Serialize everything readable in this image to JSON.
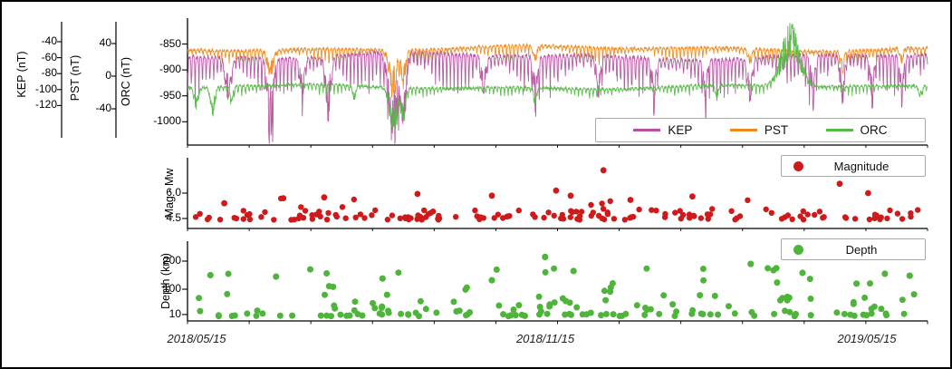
{
  "x_axis": {
    "labels": [
      "2018/05/15",
      "2018/11/15",
      "2019/05/15"
    ]
  },
  "chart_data": [
    {
      "type": "line",
      "panel": "magnetometers",
      "x_tick_labels": [
        "2018/05/15",
        "2018/11/15",
        "2019/05/15"
      ],
      "y_axes": [
        {
          "station": "KEP",
          "label": "KEP (nT)",
          "tick_labels": [
            "-40",
            "-60",
            "-80",
            "-100",
            "-120"
          ],
          "tick_values": [
            -40,
            -60,
            -80,
            -100,
            -120
          ]
        },
        {
          "station": "PST",
          "label": "PST (nT)",
          "tick_labels": [
            "40",
            "0",
            "-40"
          ],
          "tick_values": [
            40,
            0,
            -40
          ]
        },
        {
          "station": "ORC",
          "label": "ORC (nT)",
          "tick_labels": [
            "-850",
            "-900",
            "-950",
            "-1000"
          ],
          "tick_values": [
            -850,
            -900,
            -950,
            -1000
          ],
          "ylim": [
            -1045,
            -800
          ]
        }
      ],
      "legend": {
        "position": "inside-bottom-right",
        "entries": [
          {
            "label": "KEP",
            "color": "#b5519f"
          },
          {
            "label": "PST",
            "color": "#ee8a1c"
          },
          {
            "label": "ORC",
            "color": "#56b847"
          }
        ]
      },
      "series": [
        {
          "name": "PST",
          "color": "#ee8a1c",
          "baseline": -859,
          "wander_amp": 6,
          "noise": 3,
          "diurnal_amp": [
            4,
            22
          ],
          "diurnal_freq": 200,
          "seed": 11,
          "points": 2200,
          "events": [
            {
              "t": 0.112,
              "w": 0.004,
              "a": 40
            },
            {
              "t": 0.278,
              "w": 0.005,
              "a": 65
            },
            {
              "t": 0.292,
              "w": 0.003,
              "a": 50
            },
            {
              "t": 0.47,
              "w": 0.0025,
              "a": 25
            },
            {
              "t": 0.76,
              "w": 0.0025,
              "a": 22
            },
            {
              "t": 0.885,
              "w": 0.0025,
              "a": 28
            },
            {
              "t": 0.965,
              "w": 0.002,
              "a": 25
            }
          ]
        },
        {
          "name": "KEP",
          "color": "#b5519f",
          "baseline": -876,
          "wander_amp": 8,
          "noise": 4,
          "diurnal_amp": [
            12,
            55
          ],
          "diurnal_freq": 200,
          "seed": 5,
          "points": 2200,
          "events": [
            {
              "t": 0.055,
              "w": 0.004,
              "a": 60
            },
            {
              "t": 0.112,
              "w": 0.004,
              "a": 110
            },
            {
              "t": 0.155,
              "w": 0.003,
              "a": 55
            },
            {
              "t": 0.19,
              "w": 0.0035,
              "a": 85
            },
            {
              "t": 0.278,
              "w": 0.006,
              "a": 140
            },
            {
              "t": 0.292,
              "w": 0.0035,
              "a": 110
            },
            {
              "t": 0.4,
              "w": 0.003,
              "a": 55
            },
            {
              "t": 0.47,
              "w": 0.003,
              "a": 62
            },
            {
              "t": 0.555,
              "w": 0.003,
              "a": 58
            },
            {
              "t": 0.63,
              "w": 0.003,
              "a": 60
            },
            {
              "t": 0.7,
              "w": 0.0025,
              "a": 55
            },
            {
              "t": 0.76,
              "w": 0.003,
              "a": 62
            },
            {
              "t": 0.845,
              "w": 0.003,
              "a": 58
            },
            {
              "t": 0.885,
              "w": 0.003,
              "a": 68
            },
            {
              "t": 0.925,
              "w": 0.0025,
              "a": 60
            },
            {
              "t": 0.965,
              "w": 0.0025,
              "a": 65
            }
          ]
        },
        {
          "name": "ORC",
          "color": "#56b847",
          "baseline": -933,
          "wander_amp": 5,
          "noise": 2.5,
          "diurnal_amp": [
            2,
            13
          ],
          "diurnal_freq": 200,
          "seed": 23,
          "points": 2200,
          "events": [
            {
              "t": 0.012,
              "w": 0.0028,
              "a": 36
            },
            {
              "t": 0.034,
              "w": 0.003,
              "a": 42
            },
            {
              "t": 0.06,
              "w": 0.002,
              "a": 26
            },
            {
              "t": 0.225,
              "w": 0.002,
              "a": 24
            },
            {
              "t": 0.278,
              "w": 0.005,
              "a": 75
            },
            {
              "t": 0.292,
              "w": 0.003,
              "a": 52
            },
            {
              "t": 0.47,
              "w": 0.002,
              "a": 26
            },
            {
              "t": 0.715,
              "w": 0.002,
              "a": 20
            },
            {
              "t": 0.815,
              "w": 0.012,
              "a": -92
            },
            {
              "t": 0.99,
              "w": 0.002,
              "a": 22
            }
          ]
        }
      ]
    },
    {
      "type": "scatter",
      "panel": "magnitude",
      "ylabel": "Mag - Mw",
      "y_tick_labels": [
        "6.0",
        "4.5"
      ],
      "y_tick_values": [
        6.0,
        4.5
      ],
      "ylim": [
        3.9,
        8.0
      ],
      "legend": {
        "label": "Magnitude"
      },
      "color": "#ce1a1a",
      "background_points": {
        "count": 160,
        "seed": 42,
        "base": 4.42,
        "scale": 0.27,
        "max": 6.05
      },
      "notable_points": [
        {
          "x": 0.563,
          "y": 7.35
        },
        {
          "x": 0.498,
          "y": 6.15
        },
        {
          "x": 0.518,
          "y": 5.85
        },
        {
          "x": 0.887,
          "y": 6.55
        },
        {
          "x": 0.926,
          "y": 6.0
        },
        {
          "x": 0.124,
          "y": 5.7
        },
        {
          "x": 0.18,
          "y": 5.75
        },
        {
          "x": 0.308,
          "y": 5.95
        },
        {
          "x": 0.41,
          "y": 5.85
        },
        {
          "x": 0.043,
          "y": 5.4
        },
        {
          "x": 0.685,
          "y": 5.8
        },
        {
          "x": 0.6,
          "y": 5.6
        }
      ]
    },
    {
      "type": "scatter",
      "panel": "depth",
      "ylabel": "Depth (km)",
      "y_tick_labels": [
        "200",
        "100",
        "10"
      ],
      "y_tick_values": [
        200,
        100,
        10
      ],
      "ylim": [
        0,
        270
      ],
      "legend": {
        "label": "Depth"
      },
      "color": "#4eb43a",
      "background_points": {
        "count": 158,
        "seed": 77,
        "shallow_frac": 0.45,
        "deep_max": 160
      },
      "notable_points": [
        {
          "x": 0.483,
          "y": 215
        },
        {
          "x": 0.522,
          "y": 165
        },
        {
          "x": 0.765,
          "y": 190
        },
        {
          "x": 0.8,
          "y": 175
        },
        {
          "x": 0.836,
          "y": 158
        },
        {
          "x": 0.949,
          "y": 155
        },
        {
          "x": 0.983,
          "y": 148
        },
        {
          "x": 0.024,
          "y": 150
        },
        {
          "x": 0.114,
          "y": 145
        },
        {
          "x": 0.26,
          "y": 138
        },
        {
          "x": 0.41,
          "y": 132
        },
        {
          "x": 0.91,
          "y": 120
        }
      ]
    }
  ]
}
